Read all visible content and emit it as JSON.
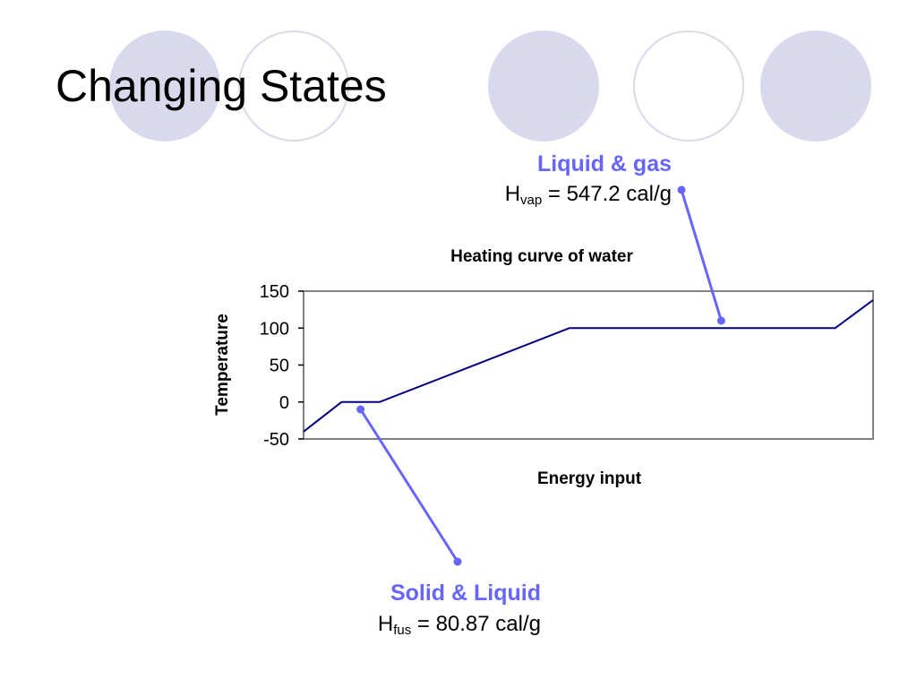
{
  "slide": {
    "title": "Changing States"
  },
  "callouts": {
    "vaporization": {
      "heading": "Liquid & gas",
      "symbol": "H",
      "subscript": "vap",
      "value_text": " = 547.2 cal/g"
    },
    "fusion": {
      "heading": "Solid & Liquid",
      "symbol": "H",
      "subscript": "fus",
      "value_text": " = 80.87 cal/g"
    }
  },
  "colors": {
    "background": "#ffffff",
    "decor_circle": "#d9d9ee",
    "callout_accent": "#6666ff",
    "curve": "#000080",
    "plot_border": "#808080",
    "text": "#000000"
  },
  "chart_data": {
    "type": "line",
    "title": "Heating curve of water",
    "xlabel": "Energy input",
    "ylabel": "Temperature",
    "ylim": [
      -50,
      150
    ],
    "yticks": [
      -50,
      0,
      50,
      100,
      150
    ],
    "xlim": [
      0,
      15
    ],
    "x_ticks_shown": false,
    "grid": false,
    "legend": "none",
    "series": [
      {
        "x": [
          0,
          1,
          2,
          7,
          14,
          15
        ],
        "y": [
          -40,
          0,
          0,
          100,
          100,
          138
        ]
      }
    ],
    "annotations": [
      {
        "target": "vaporization",
        "point": [
          11,
          110
        ]
      },
      {
        "target": "fusion",
        "point": [
          1.5,
          -10
        ]
      }
    ]
  }
}
